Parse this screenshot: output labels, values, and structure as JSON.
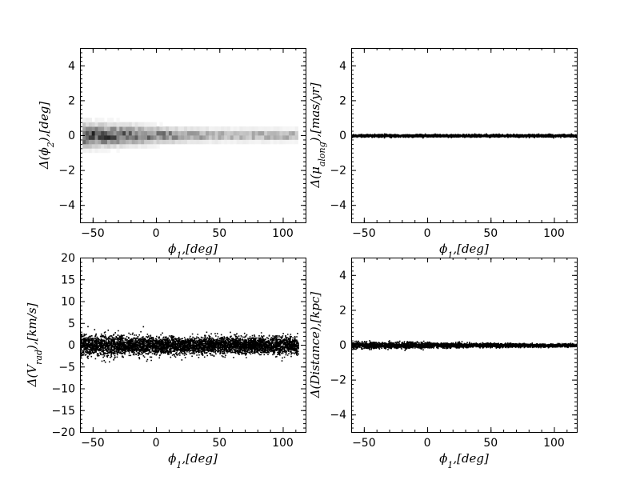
{
  "chart_data": [
    {
      "type": "heatmap",
      "xlabel": "$\\phi_1,[deg]$",
      "ylabel": "$\\Delta(\\phi_2),[deg]$",
      "xlim": [
        -60,
        118
      ],
      "ylim": [
        -5,
        5
      ],
      "xticks": [
        -50,
        0,
        50,
        100
      ],
      "xtick_labels": [
        "−50",
        "0",
        "50",
        "100"
      ],
      "yticks": [
        -4,
        -2,
        0,
        2,
        4
      ],
      "ytick_labels": [
        "−4",
        "−2",
        "0",
        "2",
        "4"
      ],
      "x_range": [
        -58,
        112
      ],
      "residual_center": 0,
      "residual_spread": [
        {
          "x": -55,
          "sd": 0.38
        },
        {
          "x": -20,
          "sd": 0.33
        },
        {
          "x": 20,
          "sd": 0.22
        },
        {
          "x": 60,
          "sd": 0.2
        },
        {
          "x": 110,
          "sd": 0.19
        }
      ],
      "density_trend": [
        {
          "x": -55,
          "density": 1.0
        },
        {
          "x": 0,
          "density": 0.7
        },
        {
          "x": 50,
          "density": 0.45
        },
        {
          "x": 110,
          "density": 0.45
        }
      ],
      "colormap": "greys",
      "grid": false
    },
    {
      "type": "scatter",
      "xlabel": "$\\phi_1,[deg]$",
      "ylabel": "$\\Delta(\\mu_{along}),[mas/yr]$",
      "xlim": [
        -60,
        118
      ],
      "ylim": [
        -5,
        5
      ],
      "xticks": [
        -50,
        0,
        50,
        100
      ],
      "xtick_labels": [
        "−50",
        "0",
        "50",
        "100"
      ],
      "yticks": [
        -4,
        -2,
        0,
        2,
        4
      ],
      "ytick_labels": [
        "−4",
        "−2",
        "0",
        "2",
        "4"
      ],
      "x_range": [
        -60,
        118
      ],
      "residual_center": 0,
      "residual_spread": [
        {
          "x": -60,
          "sd": 0.035
        },
        {
          "x": 118,
          "sd": 0.035
        }
      ],
      "color": "#000000",
      "grid": false
    },
    {
      "type": "scatter",
      "xlabel": "$\\phi_1,[deg]$",
      "ylabel": "$\\Delta(V_{rad}),[km/s]$",
      "xlim": [
        -60,
        118
      ],
      "ylim": [
        -20,
        20
      ],
      "xticks": [
        -50,
        0,
        50,
        100
      ],
      "xtick_labels": [
        "−50",
        "0",
        "50",
        "100"
      ],
      "yticks": [
        -20,
        -15,
        -10,
        -5,
        0,
        5,
        10,
        15,
        20
      ],
      "ytick_labels": [
        "−20",
        "−15",
        "−10",
        "−5",
        "0",
        "5",
        "10",
        "15",
        "20"
      ],
      "x_range": [
        -60,
        112
      ],
      "residual_center": 0,
      "residual_spread": [
        {
          "x": -60,
          "sd": 1.25
        },
        {
          "x": 0,
          "sd": 1.0
        },
        {
          "x": 60,
          "sd": 0.95
        },
        {
          "x": 112,
          "sd": 0.95
        }
      ],
      "residual_range": [
        -4.5,
        4.5
      ],
      "color": "#000000",
      "grid": false
    },
    {
      "type": "scatter",
      "xlabel": "$\\phi_1,[deg]$",
      "ylabel": "$\\Delta(Distance),[kpc]$",
      "xlim": [
        -60,
        118
      ],
      "ylim": [
        -5,
        5
      ],
      "xticks": [
        -50,
        0,
        50,
        100
      ],
      "xtick_labels": [
        "−50",
        "0",
        "50",
        "100"
      ],
      "yticks": [
        -4,
        -2,
        0,
        2,
        4
      ],
      "ytick_labels": [
        "−4",
        "−2",
        "0",
        "2",
        "4"
      ],
      "x_range": [
        -60,
        118
      ],
      "residual_center": 0,
      "residual_spread": [
        {
          "x": -60,
          "sd": 0.1
        },
        {
          "x": 0,
          "sd": 0.08
        },
        {
          "x": 60,
          "sd": 0.05
        },
        {
          "x": 118,
          "sd": 0.04
        }
      ],
      "color": "#000000",
      "grid": false
    }
  ]
}
